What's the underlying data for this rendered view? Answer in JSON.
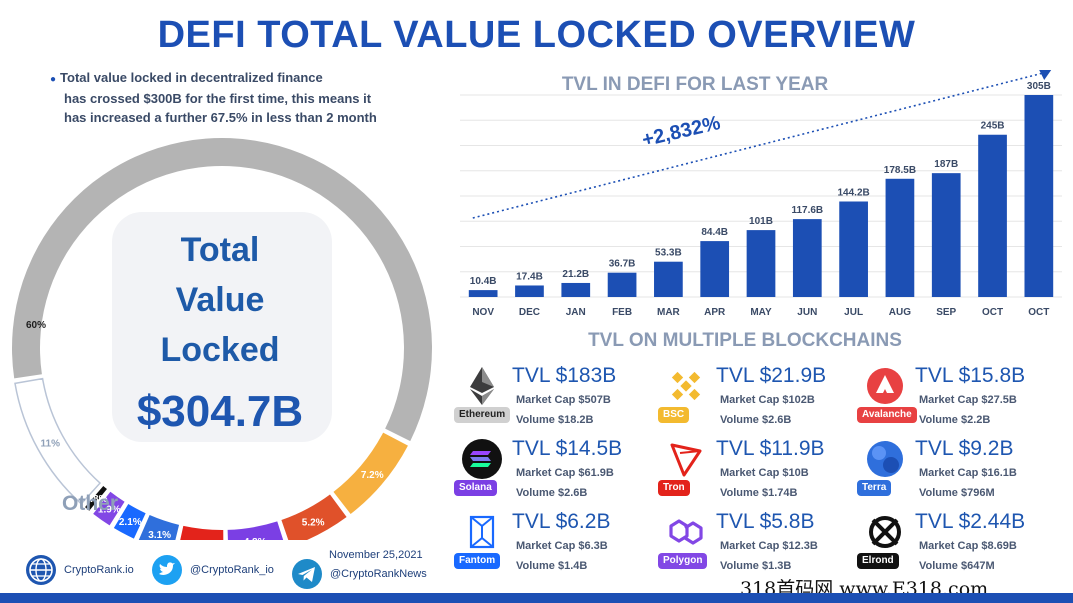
{
  "title": "DEFI TOTAL VALUE LOCKED OVERVIEW",
  "intro": {
    "line1": "Total value locked in decentralized finance",
    "line2": "has crossed $300B for the first time, this means it",
    "line3": "has increased a further 67.5% in less than 2 month"
  },
  "total": {
    "line1": "Total",
    "line2": "Value",
    "line3": "Locked",
    "amount": "$304.7B"
  },
  "other_label": "Other",
  "footer": {
    "site": "CryptoRank.io",
    "twitter": "@CryptoRank_io",
    "telegram": "@CryptoRankNews",
    "date": "November 25,2021"
  },
  "bar_title": "TVL IN DEFI FOR LAST YEAR",
  "growth_label": "+2,832%",
  "chains_title": "TVL ON MULTIPLE BLOCKCHAINS",
  "chains": [
    {
      "name": "Ethereum",
      "tvl": "TVL $183B",
      "market_cap": "Market Cap $507B",
      "volume": "Volume $18.2B",
      "color": "#d0d0d0",
      "text_color": "#222222",
      "icon": "ethereum-icon"
    },
    {
      "name": "BSC",
      "tvl": "TVL $21.9B",
      "market_cap": "Market Cap $102B",
      "volume": "Volume $2.6B",
      "color": "#f3ba2f",
      "text_color": "#ffffff",
      "icon": "bsc-icon"
    },
    {
      "name": "Avalanche",
      "tvl": "TVL $15.8B",
      "market_cap": "Market Cap $27.5B",
      "volume": "Volume $2.2B",
      "color": "#e84142",
      "text_color": "#ffffff",
      "icon": "avalanche-icon"
    },
    {
      "name": "Solana",
      "tvl": "TVL $14.5B",
      "market_cap": "Market Cap $61.9B",
      "volume": "Volume $2.6B",
      "color": "#7b3fe4",
      "text_color": "#ffffff",
      "icon": "solana-icon"
    },
    {
      "name": "Tron",
      "tvl": "TVL $11.9B",
      "market_cap": "Market Cap $10B",
      "volume": "Volume $1.74B",
      "color": "#e3231b",
      "text_color": "#ffffff",
      "icon": "tron-icon"
    },
    {
      "name": "Terra",
      "tvl": "TVL $9.2B",
      "market_cap": "Market Cap $16.1B",
      "volume": "Volume $796M",
      "color": "#2f6fdc",
      "text_color": "#ffffff",
      "icon": "terra-icon"
    },
    {
      "name": "Fantom",
      "tvl": "TVL $6.2B",
      "market_cap": "Market Cap $6.3B",
      "volume": "Volume $1.4B",
      "color": "#1969ff",
      "text_color": "#ffffff",
      "icon": "fantom-icon"
    },
    {
      "name": "Polygon",
      "tvl": "TVL $5.8B",
      "market_cap": "Market Cap $12.3B",
      "volume": "Volume $1.3B",
      "color": "#8247e5",
      "text_color": "#ffffff",
      "icon": "polygon-icon"
    },
    {
      "name": "Elrond",
      "tvl": "TVL $2.44B",
      "market_cap": "Market Cap $8.69B",
      "volume": "Volume $647M",
      "color": "#111111",
      "text_color": "#ffffff",
      "icon": "elrond-icon"
    }
  ],
  "watermark": "318首码网 www.E318.com",
  "chart_data": [
    {
      "type": "bar",
      "title": "TVL IN DEFI FOR LAST YEAR",
      "categories": [
        "NOV",
        "DEC",
        "JAN",
        "FEB",
        "MAR",
        "APR",
        "MAY",
        "JUN",
        "JUL",
        "AUG",
        "SEP",
        "OCT",
        "OCT"
      ],
      "values": [
        10.4,
        17.4,
        21.2,
        36.7,
        53.3,
        84.4,
        101,
        117.6,
        144.2,
        178.5,
        187,
        245,
        305
      ],
      "labels": [
        "10.4B",
        "17.4B",
        "21.2B",
        "36.7B",
        "53.3B",
        "84.4B",
        "101B",
        "117.6B",
        "144.2B",
        "178.5B",
        "187B",
        "245B",
        "305B"
      ],
      "ylim": [
        0,
        305
      ],
      "grid": true,
      "color": "#1c4fb4",
      "annotation": "+2,832%"
    },
    {
      "type": "pie",
      "style": "donut",
      "title": "Total Value Locked $304.7B",
      "slices": [
        {
          "label": "60%",
          "value": 60,
          "color": "#b4b4b4"
        },
        {
          "label": "7.2%",
          "value": 7.2,
          "color": "#f6b040"
        },
        {
          "label": "5.2%",
          "value": 5.2,
          "color": "#e0512a"
        },
        {
          "label": "4.8%",
          "value": 4.8,
          "color": "#7b3fe4"
        },
        {
          "label": "3.9%",
          "value": 3.9,
          "color": "#e3231b"
        },
        {
          "label": "3.1%",
          "value": 3.1,
          "color": "#2f6fdc"
        },
        {
          "label": "2.1%",
          "value": 2.1,
          "color": "#1969ff"
        },
        {
          "label": "1.9%",
          "value": 1.9,
          "color": "#8247e5"
        },
        {
          "label": "0.8%",
          "value": 0.8,
          "color": "#111111"
        },
        {
          "label": "11%",
          "value": 11,
          "color": "#ffffff"
        }
      ]
    }
  ]
}
